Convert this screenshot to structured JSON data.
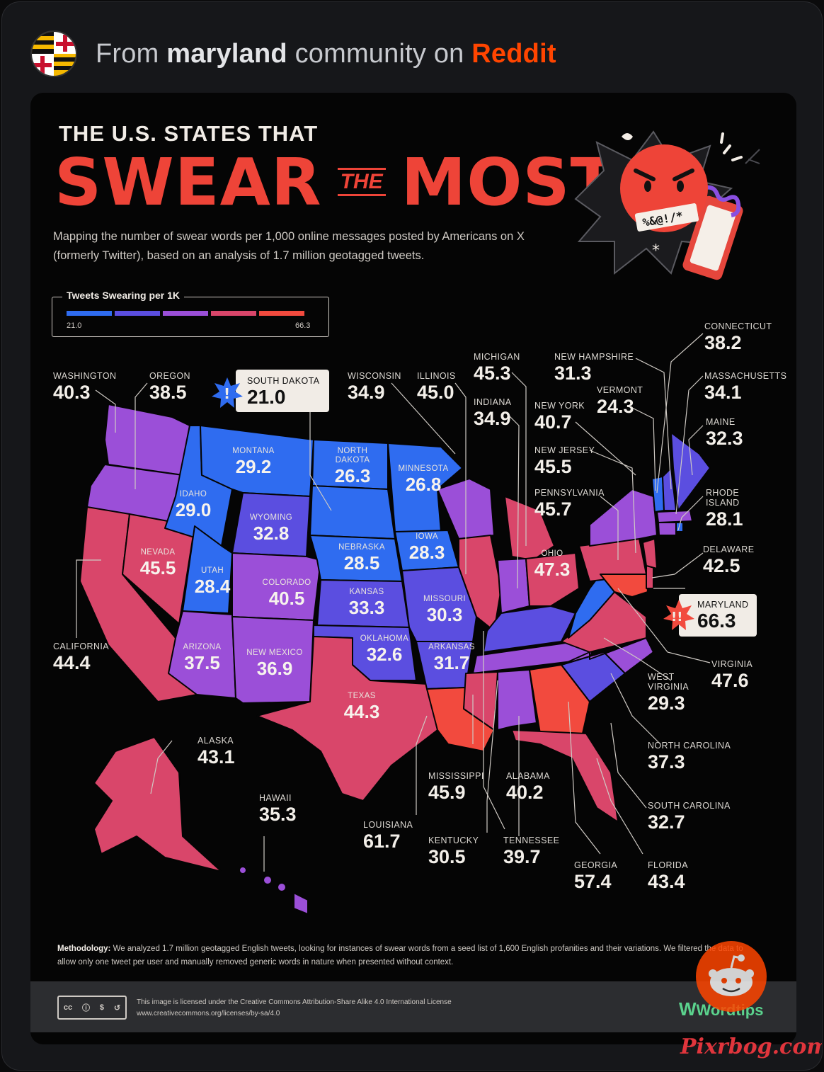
{
  "post": {
    "from_prefix": "From",
    "community": "maryland",
    "middle": "community on",
    "platform": "Reddit"
  },
  "infographic": {
    "title_line1": "THE U.S. STATES THAT",
    "title_word1": "SWEAR",
    "title_word2": "THE",
    "title_word3": "MOST",
    "subtitle": "Mapping the number of swear words per 1,000 online messages posted by Americans on X (formerly Twitter), based on an analysis of 1.7 million geotagged tweets.",
    "badge_text": "%&@!/*",
    "legend": {
      "title": "Tweets Swearing per 1K",
      "min": "21.0",
      "max": "66.3",
      "colors": [
        "#2f6cf0",
        "#5b4ee0",
        "#9b4fd8",
        "#d9466a",
        "#f24a3e"
      ]
    },
    "states": [
      {
        "name": "WASHINGTON",
        "value": "40.3"
      },
      {
        "name": "OREGON",
        "value": "38.5"
      },
      {
        "name": "SOUTH DAKOTA",
        "value": "21.0"
      },
      {
        "name": "WISCONSIN",
        "value": "34.9"
      },
      {
        "name": "ILLINOIS",
        "value": "45.0"
      },
      {
        "name": "MICHIGAN",
        "value": "45.3"
      },
      {
        "name": "NEW HAMPSHIRE",
        "value": "31.3"
      },
      {
        "name": "CONNECTICUT",
        "value": "38.2"
      },
      {
        "name": "MASSACHUSETTS",
        "value": "34.1"
      },
      {
        "name": "VERMONT",
        "value": "24.3"
      },
      {
        "name": "INDIANA",
        "value": "34.9"
      },
      {
        "name": "NEW YORK",
        "value": "40.7"
      },
      {
        "name": "MAINE",
        "value": "32.3"
      },
      {
        "name": "NEW JERSEY",
        "value": "45.5"
      },
      {
        "name": "PENNSYLVANIA",
        "value": "45.7"
      },
      {
        "name": "RHODE ISLAND",
        "value": "28.1"
      },
      {
        "name": "MONTANA",
        "value": "29.2"
      },
      {
        "name": "NORTH DAKOTA",
        "value": "26.3"
      },
      {
        "name": "MINNESOTA",
        "value": "26.8"
      },
      {
        "name": "IDAHO",
        "value": "29.0"
      },
      {
        "name": "WYOMING",
        "value": "32.8"
      },
      {
        "name": "IOWA",
        "value": "28.3"
      },
      {
        "name": "NEBRASKA",
        "value": "28.5"
      },
      {
        "name": "NEVADA",
        "value": "45.5"
      },
      {
        "name": "UTAH",
        "value": "28.4"
      },
      {
        "name": "COLORADO",
        "value": "40.5"
      },
      {
        "name": "KANSAS",
        "value": "33.3"
      },
      {
        "name": "MISSOURI",
        "value": "30.3"
      },
      {
        "name": "OHIO",
        "value": "47.3"
      },
      {
        "name": "DELAWARE",
        "value": "42.5"
      },
      {
        "name": "MARYLAND",
        "value": "66.3"
      },
      {
        "name": "CALIFORNIA",
        "value": "44.4"
      },
      {
        "name": "ARIZONA",
        "value": "37.5"
      },
      {
        "name": "NEW MEXICO",
        "value": "36.9"
      },
      {
        "name": "OKLAHOMA",
        "value": "32.6"
      },
      {
        "name": "ARKANSAS",
        "value": "31.7"
      },
      {
        "name": "VIRGINIA",
        "value": "47.6"
      },
      {
        "name": "WEST VIRGINIA",
        "value": "29.3"
      },
      {
        "name": "TEXAS",
        "value": "44.3"
      },
      {
        "name": "ALASKA",
        "value": "43.1"
      },
      {
        "name": "NORTH CAROLINA",
        "value": "37.3"
      },
      {
        "name": "MISSISSIPPI",
        "value": "45.9"
      },
      {
        "name": "ALABAMA",
        "value": "40.2"
      },
      {
        "name": "HAWAII",
        "value": "35.3"
      },
      {
        "name": "SOUTH CAROLINA",
        "value": "32.7"
      },
      {
        "name": "LOUISIANA",
        "value": "61.7"
      },
      {
        "name": "KENTUCKY",
        "value": "30.5"
      },
      {
        "name": "TENNESSEE",
        "value": "39.7"
      },
      {
        "name": "GEORGIA",
        "value": "57.4"
      },
      {
        "name": "FLORIDA",
        "value": "43.4"
      }
    ],
    "methodology_label": "Methodology:",
    "methodology_text": "We analyzed 1.7 million geotagged English tweets, looking for instances of swear words from a seed list of 1,600 English profanities and their variations. We filtered the data to allow only one tweet per user and manually removed generic words in nature when presented without context.",
    "license_line1": "This image is licensed under the Creative Commons Attribution-Share Alike 4.0 International License",
    "license_line2": "www.creativecommons.org/licenses/by-sa/4.0",
    "cc_icons": [
      "cc",
      "by",
      "nc",
      "sa"
    ],
    "brand": "Wordtips"
  },
  "watermark": "Pixrbog.com"
}
